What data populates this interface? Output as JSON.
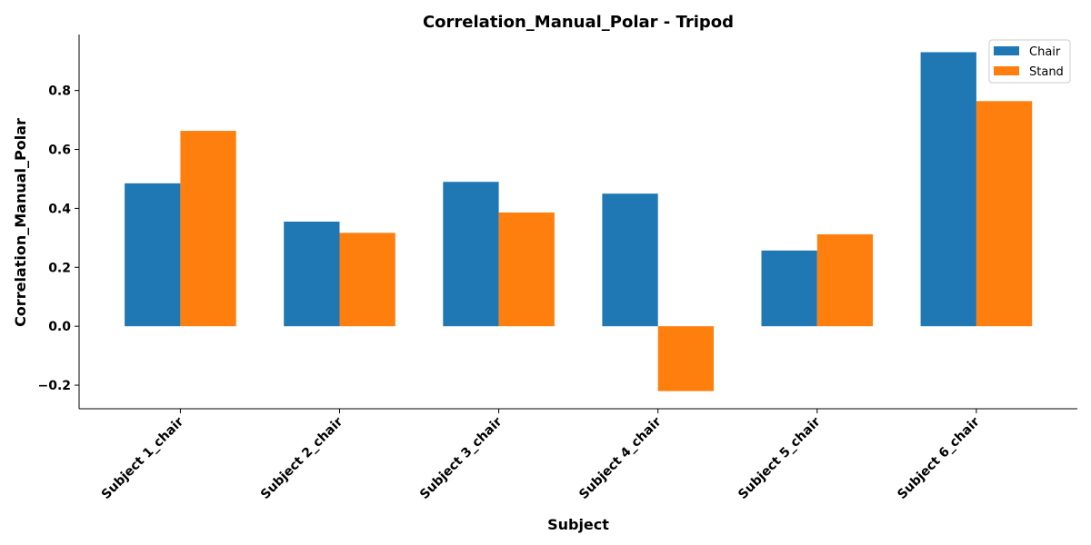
{
  "chart_data": {
    "type": "bar",
    "title": "Correlation_Manual_Polar - Tripod",
    "xlabel": "Subject",
    "ylabel": "Correlation_Manual_Polar",
    "categories": [
      "Subject 1_chair",
      "Subject 2_chair",
      "Subject 3_chair",
      "Subject 4_chair",
      "Subject 5_chair",
      "Subject 6_chair"
    ],
    "series": [
      {
        "name": "Chair",
        "color": "#1f77b4",
        "values": [
          0.485,
          0.355,
          0.49,
          0.45,
          0.257,
          0.93
        ]
      },
      {
        "name": "Stand",
        "color": "#ff7f0e",
        "values": [
          0.663,
          0.317,
          0.386,
          -0.22,
          0.312,
          0.764
        ]
      }
    ],
    "ylim": [
      -0.28,
      0.99
    ],
    "yticks": [
      -0.2,
      0.0,
      0.2,
      0.4,
      0.6,
      0.8
    ],
    "ytick_labels": [
      "−0.2",
      "0.0",
      "0.2",
      "0.4",
      "0.6",
      "0.8"
    ],
    "grid": false,
    "legend_position": "top-right"
  }
}
